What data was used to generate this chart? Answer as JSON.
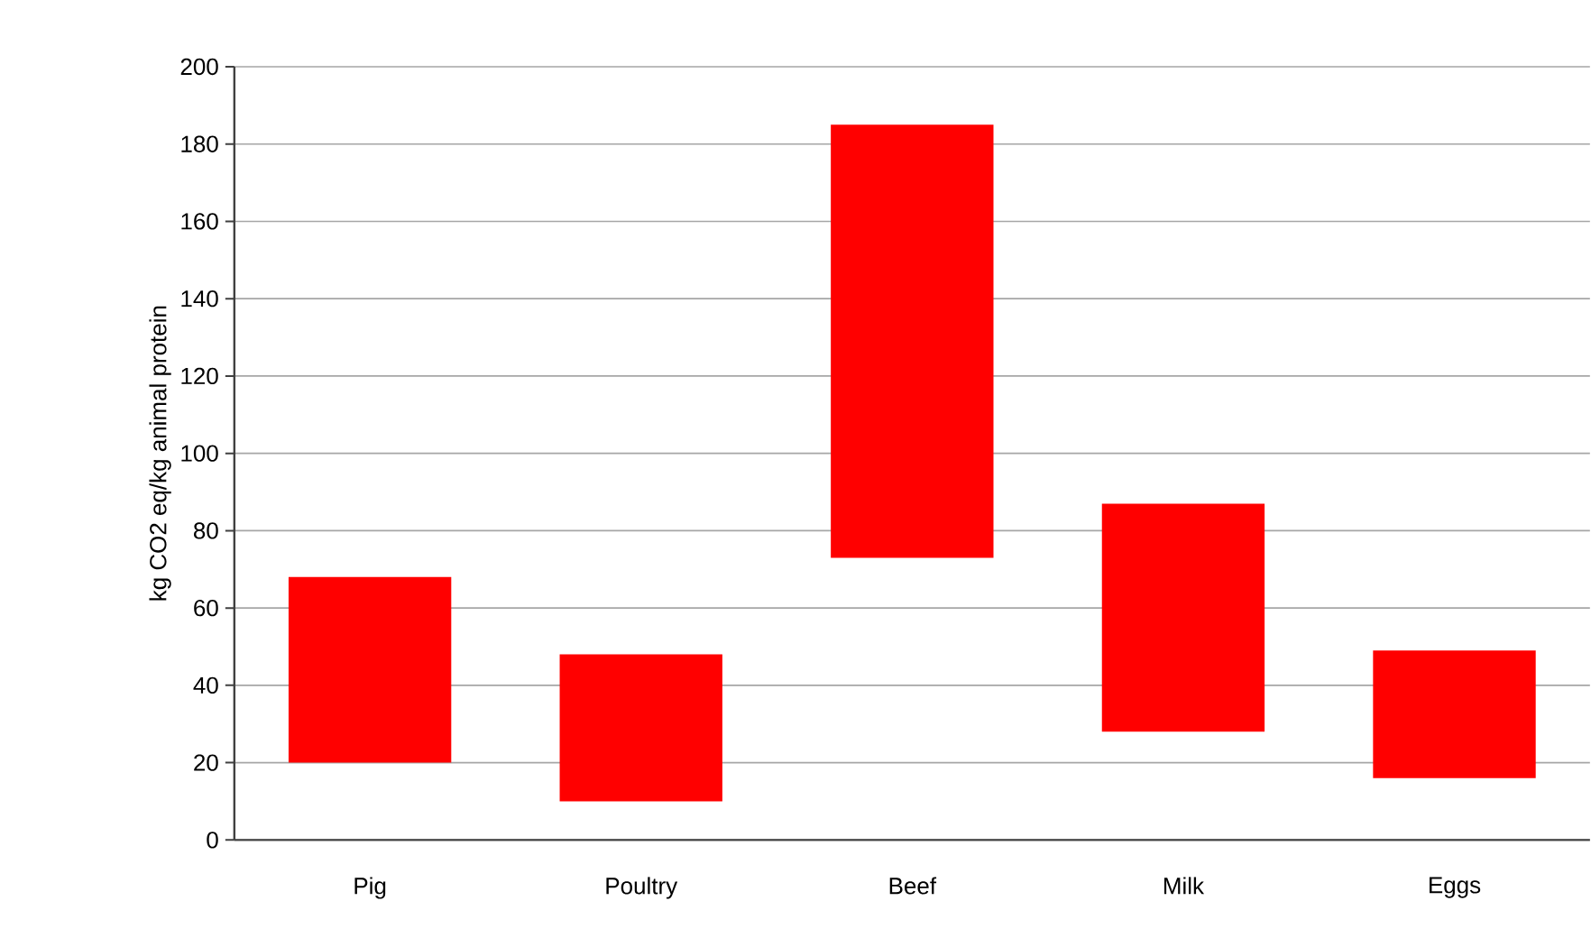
{
  "chart_data": {
    "type": "bar",
    "ylabel": "kg CO2 eq/kg animal protein",
    "categories": [
      "Pig",
      "Poultry",
      "Beef",
      "Milk",
      "Eggs"
    ],
    "base": [
      20,
      10,
      73,
      28,
      16
    ],
    "values": [
      48,
      38,
      112,
      59,
      33
    ],
    "color": "#ff0000",
    "ylim": [
      0,
      200
    ],
    "yticks": [
      0,
      20,
      40,
      60,
      80,
      100,
      120,
      140,
      160,
      180,
      200
    ],
    "grid": "y"
  }
}
